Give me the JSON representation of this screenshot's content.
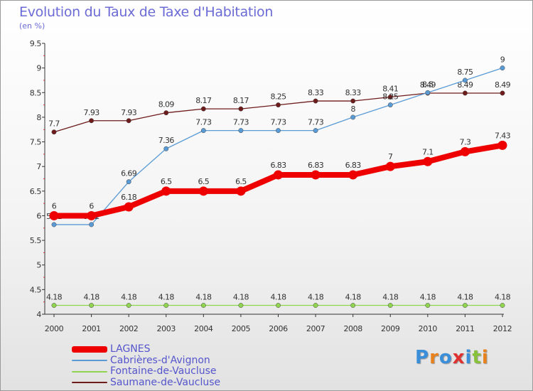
{
  "title": "Evolution du Taux de Taxe d'Habitation",
  "subtitle": "(en %)",
  "logo": {
    "text": "Proxiti",
    "colors": [
      "#3a8fd8",
      "#e8821e",
      "#3a8fd8",
      "#e03030",
      "#3a8fd8",
      "#88c03a",
      "#e8821e"
    ]
  },
  "chart_data": {
    "type": "line",
    "title": "Evolution du Taux de Taxe d'Habitation",
    "ylabel": "(en %)",
    "xlabel": "",
    "ylim": [
      4,
      9.5
    ],
    "yticks": [
      "4",
      "4.5",
      "5",
      "5.5",
      "6",
      "6.5",
      "7",
      "7.5",
      "8",
      "8.5",
      "9",
      "9.5"
    ],
    "categories": [
      "2000",
      "2001",
      "2002",
      "2003",
      "2004",
      "2005",
      "2006",
      "2007",
      "2008",
      "2009",
      "2010",
      "2011",
      "2012"
    ],
    "grid": false,
    "legend": "bottom-left",
    "series": [
      {
        "name": "Saumane-de-Vaucluse",
        "color": "#6e1b1b",
        "labels_above": true,
        "values": [
          7.7,
          7.93,
          7.93,
          8.09,
          8.17,
          8.17,
          8.25,
          8.33,
          8.33,
          8.41,
          8.49,
          8.49,
          8.49
        ],
        "value_labels": [
          "7.7",
          "7.93",
          "7.93",
          "8.09",
          "8.17",
          "8.17",
          "8.25",
          "8.33",
          "8.33",
          "8.41",
          "8.49",
          "8.49",
          "8.49"
        ]
      },
      {
        "name": "Cabrières-d'Avignon",
        "color": "#5a9bd5",
        "labels_above": true,
        "values": [
          5.82,
          5.82,
          6.69,
          7.36,
          7.73,
          7.73,
          7.73,
          7.73,
          8,
          8.25,
          8.5,
          8.75,
          9
        ],
        "value_labels": [
          "5.82",
          "5.82",
          "6.69",
          "7.36",
          "7.73",
          "7.73",
          "7.73",
          "7.73",
          "8",
          "8.25",
          "8.5",
          "8.75",
          "9"
        ]
      },
      {
        "name": "Fontaine-de-Vaucluse",
        "color": "#90d450",
        "labels_above": true,
        "values": [
          4.18,
          4.18,
          4.18,
          4.18,
          4.18,
          4.18,
          4.18,
          4.18,
          4.18,
          4.18,
          4.18,
          4.18,
          4.18
        ],
        "value_labels": [
          "4.18",
          "4.18",
          "4.18",
          "4.18",
          "4.18",
          "4.18",
          "4.18",
          "4.18",
          "4.18",
          "4.18",
          "4.18",
          "4.18",
          "4.18"
        ]
      },
      {
        "name": "LAGNES",
        "color": "#ee0000",
        "thick": true,
        "labels_above": true,
        "values": [
          6,
          6,
          6.18,
          6.5,
          6.5,
          6.5,
          6.83,
          6.83,
          6.83,
          7,
          7.1,
          7.3,
          7.43
        ],
        "value_labels": [
          "6",
          "6",
          "6.18",
          "6.5",
          "6.5",
          "6.5",
          "6.83",
          "6.83",
          "6.83",
          "7",
          "7.1",
          "7.3",
          "7.43"
        ]
      }
    ],
    "legend_order": [
      "LAGNES",
      "Cabrières-d'Avignon",
      "Fontaine-de-Vaucluse",
      "Saumane-de-Vaucluse"
    ]
  }
}
